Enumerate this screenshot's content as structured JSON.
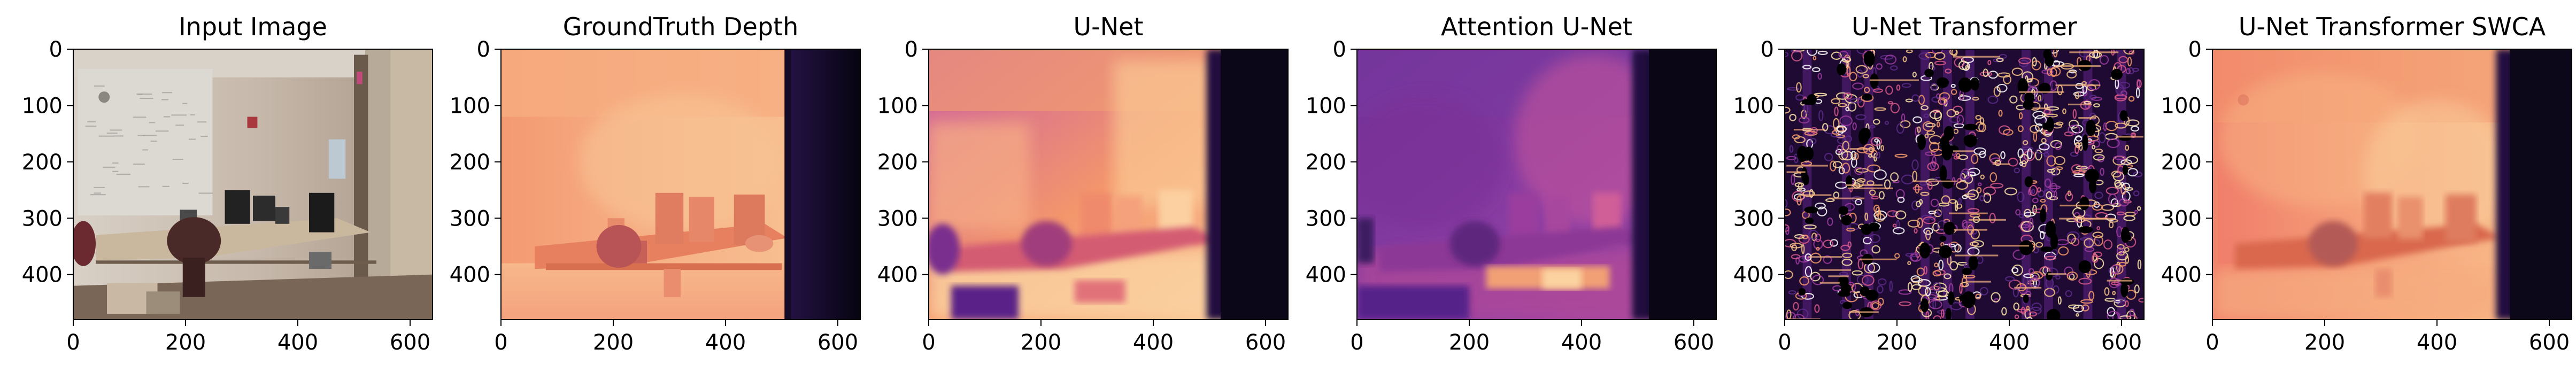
{
  "panels": [
    {
      "title": "Input Image",
      "kind": "rgb"
    },
    {
      "title": "GroundTruth Depth",
      "kind": "gt"
    },
    {
      "title": "U-Net",
      "kind": "unet"
    },
    {
      "title": "Attention U-Net",
      "kind": "attn"
    },
    {
      "title": "U-Net Transformer",
      "kind": "trans"
    },
    {
      "title": "U-Net Transformer SWCA",
      "kind": "swca"
    }
  ],
  "axes": {
    "x_ticks": [
      "0",
      "200",
      "400",
      "600"
    ],
    "y_ticks": [
      "0",
      "100",
      "200",
      "300",
      "400"
    ],
    "x_values": [
      0,
      200,
      400,
      600
    ],
    "y_values": [
      0,
      100,
      200,
      300,
      400
    ],
    "x_range": [
      0,
      640
    ],
    "y_range": [
      0,
      480
    ]
  },
  "colors": {
    "depth_near": "#fde6b4",
    "depth_mid": "#f08c6a",
    "depth_far": "#5b2a84",
    "depth_void": "#0a0616",
    "rgb_wall": "#c9bdb2",
    "rgb_floor": "#7e6a5c"
  }
}
